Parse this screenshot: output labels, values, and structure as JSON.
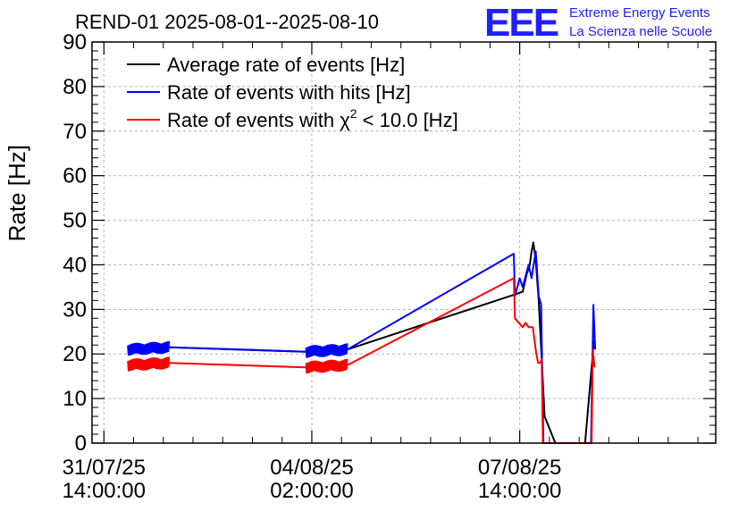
{
  "chart_data": {
    "type": "line",
    "title": "REND-01 2025-08-01--2025-08-10",
    "ylabel": "Rate [Hz]",
    "xlabel": "",
    "ylim": [
      0,
      90
    ],
    "yticks": [
      0,
      10,
      20,
      30,
      40,
      50,
      60,
      70,
      80,
      90
    ],
    "xticks": [
      {
        "date": "31/07/25",
        "time": "14:00:00",
        "day": 0
      },
      {
        "date": "04/08/25",
        "time": "02:00:00",
        "day": 3.5
      },
      {
        "date": "07/08/25",
        "time": "14:00:00",
        "day": 7
      }
    ],
    "xlim": [
      -0.2,
      10.3
    ],
    "grid": true,
    "legend_position": "top-left",
    "x_units": "days since 31/07/25 14:00:00",
    "series": [
      {
        "name": "Average rate of events [Hz]",
        "legend_label": "Average rate of events [Hz]",
        "color": "#000000",
        "x": [
          0.4,
          1.1,
          3.4,
          4.1,
          6.95,
          7.05,
          7.12,
          7.17,
          7.2,
          7.23,
          7.27,
          7.32,
          7.42,
          7.6,
          8.1,
          8.25
        ],
        "y": [
          21,
          21.5,
          20.5,
          21,
          33.5,
          34,
          38,
          40,
          43,
          45,
          41,
          32,
          6,
          0,
          0,
          23
        ]
      },
      {
        "name": "Rate of events with hits [Hz]",
        "legend_label": "Rate of events with hits [Hz]",
        "color": "#0000ff",
        "x": [
          0.4,
          1.1,
          3.4,
          4.1,
          6.9,
          6.92,
          7.0,
          7.05,
          7.15,
          7.2,
          7.27,
          7.32,
          7.36,
          7.4,
          8.2,
          8.24,
          8.27
        ],
        "y": [
          21,
          21.5,
          20.5,
          21,
          42.5,
          33,
          37,
          35,
          40,
          37,
          43,
          33,
          31,
          0,
          0,
          31,
          21
        ]
      },
      {
        "name": "Rate of events with chi2 < 10.0 [Hz]",
        "legend_label_main": "Rate of events with χ",
        "legend_label_sup": "2",
        "legend_label_tail": " < 10.0 [Hz]",
        "color": "#ff0000",
        "x": [
          0.4,
          1.1,
          3.4,
          4.1,
          6.9,
          6.92,
          7.05,
          7.1,
          7.15,
          7.22,
          7.28,
          7.31,
          7.35,
          7.37,
          7.39,
          8.21,
          8.23,
          8.26
        ],
        "y": [
          17.5,
          18,
          17,
          17.5,
          37,
          28,
          26,
          27,
          26,
          26,
          20,
          18,
          18,
          19,
          0,
          0,
          21,
          17
        ]
      }
    ]
  },
  "logo": {
    "mark": "EEE",
    "line1": "Extreme Energy Events",
    "line2": "La Scienza nelle Scuole"
  }
}
